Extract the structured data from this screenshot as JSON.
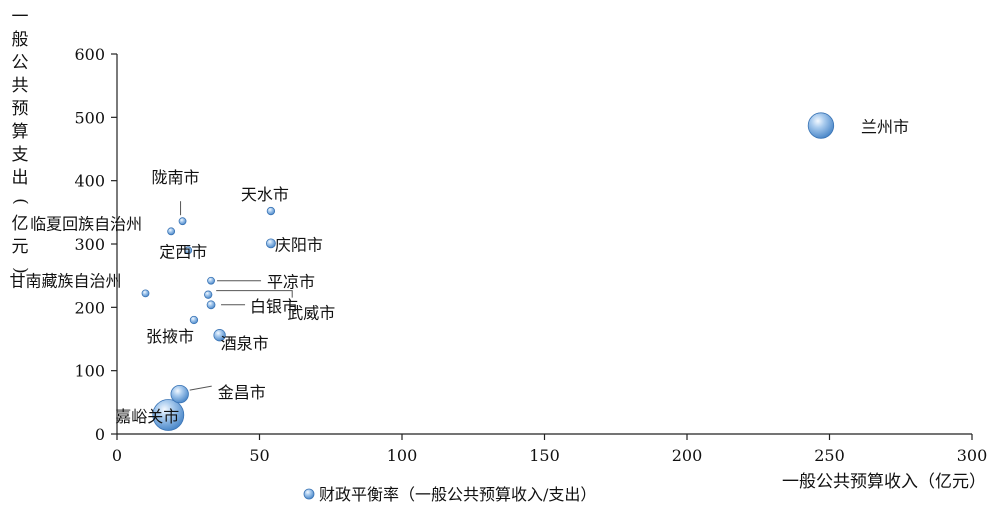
{
  "chart_data": {
    "type": "bubble",
    "title": "",
    "xlabel": "一般公共预算收入（亿元）",
    "ylabel": "一般公共预算支出（亿元）",
    "xlim": [
      0,
      300
    ],
    "ylim": [
      0,
      600
    ],
    "xticks": [
      0,
      50,
      100,
      150,
      200,
      250,
      300
    ],
    "yticks": [
      0,
      100,
      200,
      300,
      400,
      500,
      600
    ],
    "legend": {
      "position": "bottom",
      "label": "财政平衡率（一般公共预算收入/支出）"
    },
    "series": [
      {
        "name": "财政平衡率（一般公共预算收入/支出）",
        "color": "#6a9fd4",
        "points": [
          {
            "label": "兰州市",
            "x": 247,
            "y": 487,
            "r": 0.51
          },
          {
            "label": "天水市",
            "x": 54,
            "y": 352,
            "r": 0.15
          },
          {
            "label": "庆阳市",
            "x": 54,
            "y": 301,
            "r": 0.18
          },
          {
            "label": "陇南市",
            "x": 23,
            "y": 336,
            "r": 0.07
          },
          {
            "label": "临夏回族自治州",
            "x": 19,
            "y": 320,
            "r": 0.06
          },
          {
            "label": "定西市",
            "x": 25,
            "y": 290,
            "r": 0.09
          },
          {
            "label": "甘南藏族自治州",
            "x": 10,
            "y": 222,
            "r": 0.05
          },
          {
            "label": "平凉市",
            "x": 33,
            "y": 242,
            "r": 0.14
          },
          {
            "label": "武威市",
            "x": 32,
            "y": 220,
            "r": 0.15
          },
          {
            "label": "白银市",
            "x": 33,
            "y": 204,
            "r": 0.16
          },
          {
            "label": "张掖市",
            "x": 27,
            "y": 180,
            "r": 0.15
          },
          {
            "label": "酒泉市",
            "x": 36,
            "y": 156,
            "r": 0.23
          },
          {
            "label": "金昌市",
            "x": 22,
            "y": 63,
            "r": 0.35
          },
          {
            "label": "嘉峪关市",
            "x": 18,
            "y": 30,
            "r": 0.62
          }
        ]
      }
    ]
  }
}
